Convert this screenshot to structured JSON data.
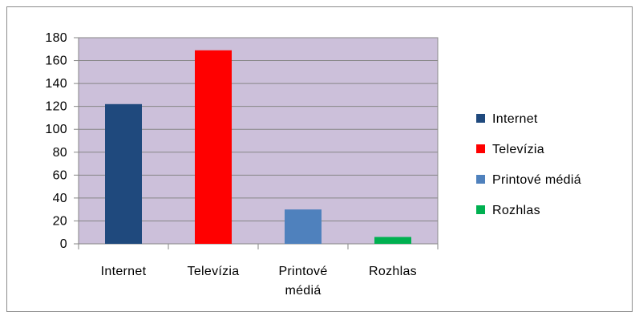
{
  "chart_data": {
    "type": "bar",
    "categories": [
      "Internet",
      "Televízia",
      "Printové médiá",
      "Rozhlas"
    ],
    "category_lines": [
      [
        "Internet"
      ],
      [
        "Televízia"
      ],
      [
        "Printové",
        "médiá"
      ],
      [
        "Rozhlas"
      ]
    ],
    "values": [
      122,
      169,
      30,
      6
    ],
    "colors": [
      "#1f497d",
      "#ff0000",
      "#4f81bd",
      "#00b050"
    ],
    "legend": [
      "Internet",
      "Televízia",
      "Printové médiá",
      "Rozhlas"
    ],
    "legend_position": "right",
    "ylim": [
      0,
      180
    ],
    "yticks": [
      0,
      20,
      40,
      60,
      80,
      100,
      120,
      140,
      160,
      180
    ],
    "plot_background": "#ccc0da",
    "grid": true,
    "title": "",
    "xlabel": "",
    "ylabel": ""
  }
}
